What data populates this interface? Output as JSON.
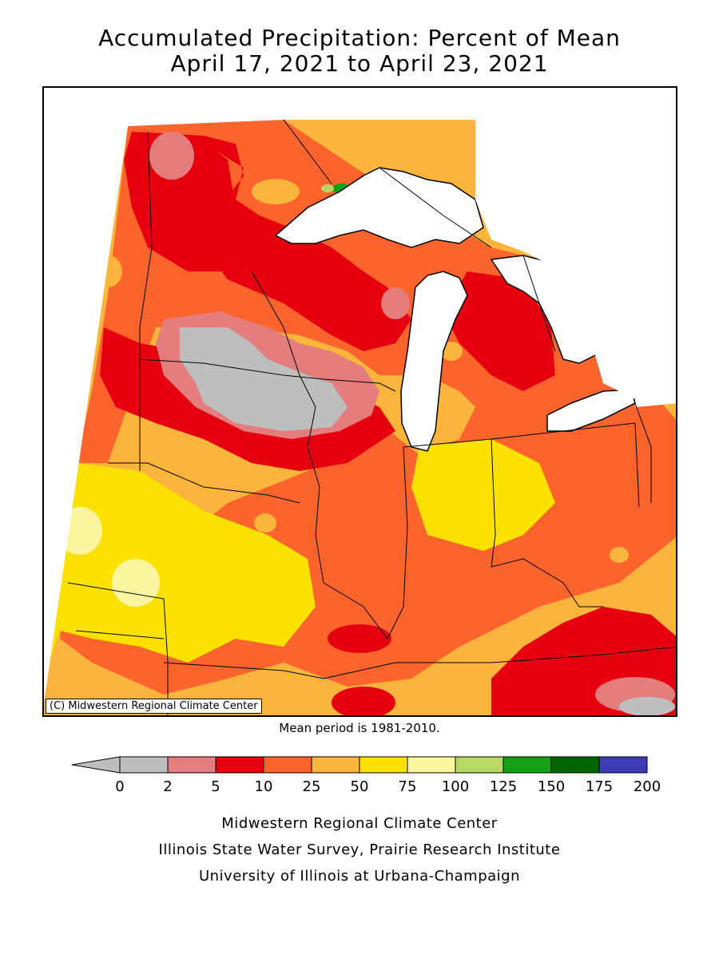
{
  "title": {
    "line1": "Accumulated Precipitation: Percent of Mean",
    "line2": "April 17, 2021 to April 23, 2021"
  },
  "map": {
    "copyright": "(C) Midwestern Regional Climate Center",
    "mean_period_note": "Mean period is 1981-2010."
  },
  "legend": {
    "ticks": [
      "0",
      "2",
      "5",
      "10",
      "25",
      "50",
      "75",
      "100",
      "125",
      "150",
      "175",
      "200"
    ],
    "colors": [
      "#bebebe",
      "#e47d7d",
      "#e6000f",
      "#fb642c",
      "#fbb43c",
      "#fbe100",
      "#fcf5a0",
      "#b9d764",
      "#14a014",
      "#006400",
      "#3c3cb4"
    ],
    "below_min_color": "#bebebe"
  },
  "credits": {
    "line1": "Midwestern Regional Climate Center",
    "line2": "Illinois State Water Survey, Prairie Research Institute",
    "line3": "University of Illinois at Urbana-Champaign"
  }
}
